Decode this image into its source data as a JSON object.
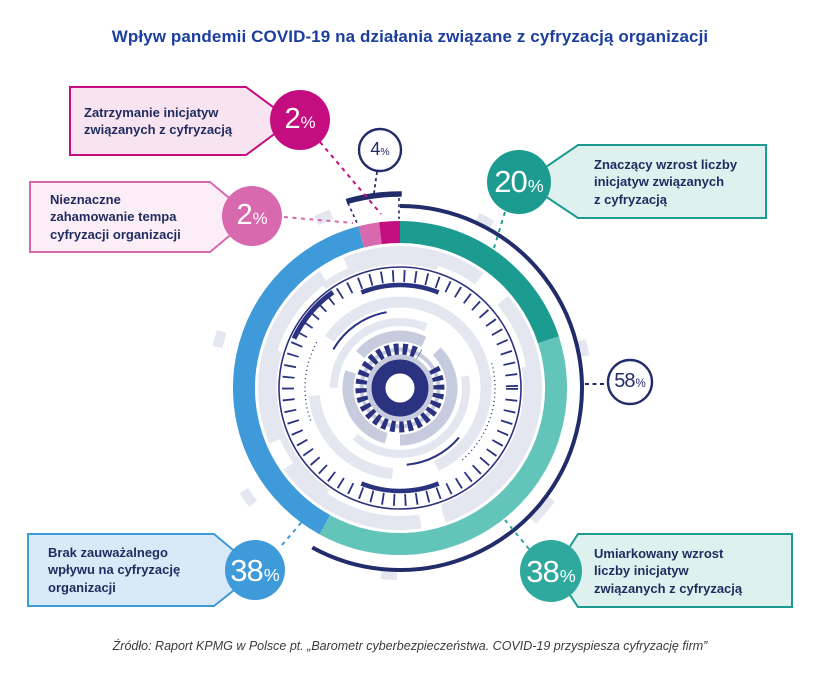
{
  "title": "Wpływ pandemii COVID-19 na działania związane z cyfryzacją organizacji",
  "source": "Źródło: Raport KPMG w Polsce pt. „Barometr cyberbezpieczeństwa. COVID-19 przyspiesza cyfryzację firm”",
  "callouts": {
    "stop": {
      "lines": {
        "0": "Zatrzymanie inicjatyw",
        "1": "związanych z cyfryzacją"
      },
      "value": "2",
      "unit": "%"
    },
    "slight_slowdown": {
      "lines": {
        "0": "Nieznaczne",
        "1": "zahamowanie tempa",
        "2": "cyfryzacji organizacji"
      },
      "value": "2",
      "unit": "%"
    },
    "significant_increase": {
      "lines": {
        "0": "Znaczący wzrost liczby",
        "1": "inicjatyw związanych",
        "2": "z cyfryzacją"
      },
      "value": "20",
      "unit": "%"
    },
    "no_impact": {
      "lines": {
        "0": "Brak zauważalnego",
        "1": "wpływu na cyfryzację",
        "2": "organizacji"
      },
      "value": "38",
      "unit": "%"
    },
    "moderate_increase": {
      "lines": {
        "0": "Umiarkowany wzrost",
        "1": "liczby inicjatyw",
        "2": "związanych z cyfryzacją"
      },
      "value": "38",
      "unit": "%"
    },
    "total_decrease": {
      "value": "4",
      "unit": "%"
    },
    "total_increase": {
      "value": "58",
      "unit": "%"
    }
  },
  "chart_data": {
    "type": "pie",
    "title": "Wpływ pandemii COVID-19 na działania związane z cyfryzacją organizacji",
    "unit": "%",
    "segments": [
      {
        "label": "Znaczący wzrost liczby inicjatyw związanych z cyfryzacją",
        "value": 20,
        "color": "#1C9C90"
      },
      {
        "label": "Umiarkowany wzrost liczby inicjatyw związanych z cyfryzacją",
        "value": 38,
        "color": "#63C5BA"
      },
      {
        "label": "Brak zauważalnego wpływu na cyfryzację organizacji",
        "value": 38,
        "color": "#3E9AD8"
      },
      {
        "label": "Nieznaczne zahamowanie tempa cyfryzacji organizacji",
        "value": 2,
        "color": "#D869AE"
      },
      {
        "label": "Zatrzymanie inicjatyw związanych z cyfryzacją",
        "value": 2,
        "color": "#C40D7E"
      }
    ],
    "totals": {
      "increase_total": 58,
      "decrease_total": 4
    },
    "source": "Raport KPMG w Polsce pt. „Barometr cyberbezpieczeństwa. COVID-19 przyspiesza cyfryzację firm”"
  },
  "colors": {
    "navy": "#232C6A",
    "dial": "#2B3280",
    "gray": "#E4E6F0",
    "silver": "#C7CBDE",
    "teal": "#1C9C90",
    "teal_light": "#63C5BA",
    "teal_mid": "#2FA89D",
    "blue": "#3E9AD8",
    "magenta": "#C40D7E",
    "pink": "#D869AE",
    "title_blue": "#1C3F9E",
    "text_navy": "#1F2B5E",
    "fill_pink_light": "#F8E4F1",
    "fill_pink_lighter": "#FBEEF7",
    "fill_teal_light": "#DEF1EF",
    "fill_blue_light": "#D8EAF8",
    "white": "#FFFFFF"
  }
}
